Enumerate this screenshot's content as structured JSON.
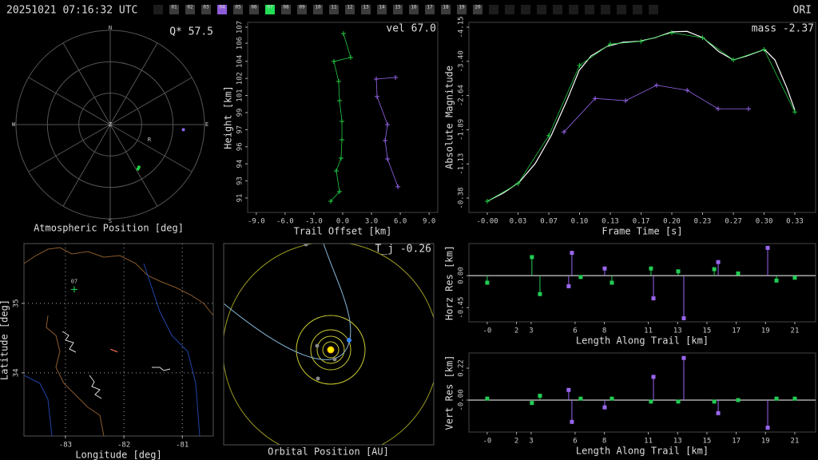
{
  "header": {
    "timestamp": "20251021 07:16:32 UTC",
    "station": "ORI",
    "cameras": [
      {
        "label": "01",
        "color": "#3c3c3c"
      },
      {
        "label": "02",
        "color": "#3c3c3c"
      },
      {
        "label": "03",
        "color": "#3c3c3c"
      },
      {
        "label": "04",
        "color": "#8e5bd8"
      },
      {
        "label": "05",
        "color": "#3c3c3c"
      },
      {
        "label": "06",
        "color": "#3c3c3c"
      },
      {
        "label": "07",
        "color": "#22dd55"
      },
      {
        "label": "08",
        "color": "#3c3c3c"
      },
      {
        "label": "09",
        "color": "#3c3c3c"
      },
      {
        "label": "10",
        "color": "#3c3c3c"
      },
      {
        "label": "11",
        "color": "#3c3c3c"
      },
      {
        "label": "12",
        "color": "#3c3c3c"
      },
      {
        "label": "13",
        "color": "#3c3c3c"
      },
      {
        "label": "14",
        "color": "#3c3c3c"
      },
      {
        "label": "15",
        "color": "#3c3c3c"
      },
      {
        "label": "16",
        "color": "#3c3c3c"
      },
      {
        "label": "17",
        "color": "#3c3c3c"
      },
      {
        "label": "18",
        "color": "#3c3c3c"
      },
      {
        "label": "19",
        "color": "#3c3c3c"
      },
      {
        "label": "20",
        "color": "#3c3c3c"
      }
    ]
  },
  "orbit": {
    "title": "Orbital Position [AU]",
    "annotation": "T_j -0.26"
  },
  "chart_data": [
    {
      "type": "polar",
      "title": "Atmospheric Position [deg]",
      "annotation": "Q* 57.5",
      "compass": [
        "N",
        "E",
        "S",
        "W"
      ],
      "center_label": "Z",
      "rlim": [
        0,
        90
      ],
      "rticks": [
        30,
        60,
        90
      ],
      "series": [
        {
          "color": "#8866ee",
          "az": [
            94
          ],
          "zen": [
            70
          ]
        },
        {
          "color": "#22cc44",
          "az": [
            146,
            148
          ],
          "zen": [
            49,
            50
          ]
        }
      ],
      "markers": [
        {
          "label": "R",
          "az": 111,
          "zen": 40
        }
      ]
    },
    {
      "type": "line",
      "annotation": "vel 67.0",
      "xlabel": "Trail Offset [km]",
      "ylabel": "Height [km]",
      "xlim": [
        -9.9,
        9.9
      ],
      "ylim": [
        89.65,
        107.45
      ],
      "xticks": [
        {
          "value": -9,
          "label": "-9.0"
        },
        {
          "value": -6,
          "label": "-6.0"
        },
        {
          "value": -3,
          "label": "-3.0"
        },
        {
          "value": 0,
          "label": "0.0"
        },
        {
          "value": 3,
          "label": "3.0"
        },
        {
          "value": 6,
          "label": "6.0"
        },
        {
          "value": 9,
          "label": "9.0"
        }
      ],
      "yticks": [
        91,
        {
          "value": 92.6,
          "label": "93"
        },
        {
          "value": 94.2,
          "label": "94"
        },
        {
          "value": 95.8,
          "label": "96"
        },
        {
          "value": 97.4,
          "label": "97"
        },
        99,
        {
          "value": 100.6,
          "label": "101"
        },
        {
          "value": 102.2,
          "label": "102"
        },
        {
          "value": 103.8,
          "label": "104"
        },
        {
          "value": 105.5,
          "label": "106"
        },
        107
      ],
      "series": [
        {
          "color": "#22cc44",
          "line": true,
          "marker": "plus",
          "x": [
            0.08,
            0.83,
            -0.92,
            -0.42,
            -0.33,
            -0.08,
            -0.08,
            -0.17,
            -0.67,
            -0.33,
            -1.25
          ],
          "values": [
            106.4,
            104.16,
            103.79,
            101.92,
            100.12,
            98.18,
            96.46,
            94.74,
            93.54,
            91.6,
            90.7
          ]
        },
        {
          "color": "#9966ee",
          "line": true,
          "marker": "plus",
          "x": [
            5.5,
            3.5,
            3.58,
            4.67,
            4.42,
            4.67,
            5.75
          ],
          "values": [
            102.29,
            102.14,
            100.5,
            97.88,
            96.38,
            94.66,
            92.05
          ]
        }
      ]
    },
    {
      "type": "line",
      "annotation": "mass -2.37",
      "xlabel": "Frame Time [s]",
      "ylabel": "Absolute Magnitude",
      "xlim": [
        -0.0199,
        0.3558
      ],
      "ylim": [
        -0.063,
        -4.259
      ],
      "xticks": [
        {
          "value": 0,
          "label": "-0.00"
        },
        {
          "value": 0.0333,
          "label": "0.03"
        },
        {
          "value": 0.0667,
          "label": "0.07"
        },
        {
          "value": 0.1,
          "label": "0.10"
        },
        {
          "value": 0.1333,
          "label": "0.13"
        },
        {
          "value": 0.1667,
          "label": "0.17"
        },
        {
          "value": 0.2,
          "label": "0.20"
        },
        {
          "value": 0.2333,
          "label": "0.23"
        },
        {
          "value": 0.2667,
          "label": "0.27"
        },
        {
          "value": 0.3,
          "label": "0.30"
        },
        {
          "value": 0.3333,
          "label": "0.33"
        }
      ],
      "yticks": [
        -0.38,
        {
          "value": -1.1346,
          "label": "-1.13"
        },
        {
          "value": -1.8892,
          "label": "-1.89"
        },
        {
          "value": -2.6438,
          "label": "-2.64"
        },
        {
          "value": -3.3984,
          "label": "-3.40"
        },
        {
          "value": -4.153,
          "label": "-4.15"
        }
      ],
      "series": [
        {
          "color": "#ffffff",
          "line": true,
          "marker": null,
          "x": [
            0,
            0.0173,
            0.0346,
            0.0519,
            0.0693,
            0.0866,
            0.0996,
            0.1126,
            0.1299,
            0.1472,
            0.1645,
            0.1818,
            0.2,
            0.2165,
            0.2338,
            0.2511,
            0.2667,
            0.2814,
            0.3004,
            0.3117,
            0.3247,
            0.3333
          ],
          "values": [
            -0.31,
            -0.49,
            -0.73,
            -1.14,
            -1.76,
            -2.55,
            -3.2,
            -3.52,
            -3.73,
            -3.82,
            -3.84,
            -3.92,
            -4.05,
            -4.06,
            -3.92,
            -3.61,
            -3.43,
            -3.52,
            -3.66,
            -3.43,
            -2.81,
            -2.32
          ]
        },
        {
          "color": "#22cc44",
          "line": true,
          "marker": "plus",
          "x": [
            0,
            0.0333,
            0.0667,
            0.1,
            0.1333,
            0.1667,
            0.2,
            0.2333,
            0.2667,
            0.3,
            0.3333
          ],
          "values": [
            -0.31,
            -0.7,
            -1.76,
            -3.31,
            -3.78,
            -3.84,
            -4.03,
            -3.92,
            -3.43,
            -3.66,
            -2.28
          ]
        },
        {
          "color": "#9966ee",
          "line": true,
          "marker": "plus",
          "x": [
            0.0831,
            0.1169,
            0.1498,
            0.1835,
            0.2165,
            0.2502,
            0.2831
          ],
          "values": [
            -1.84,
            -2.58,
            -2.53,
            -2.87,
            -2.76,
            -2.35,
            -2.35
          ]
        }
      ]
    },
    {
      "type": "map",
      "xlabel": "Longitude [deg]",
      "ylabel": "Latitude [deg]",
      "grid": true,
      "xlim": [
        -83.71,
        -80.47
      ],
      "ylim": [
        33.09,
        35.86
      ],
      "xticks": [
        -83,
        -82,
        -81
      ],
      "yticks": [
        34,
        35
      ],
      "stations": [
        {
          "label": "07",
          "lon": -82.85,
          "lat": 35.2,
          "color": "#22dd55"
        }
      ],
      "series": [
        {
          "color": "#ff7755",
          "line": true,
          "marker": null,
          "x": [
            -82.23,
            -82.11
          ],
          "values": [
            34.34,
            34.3
          ]
        }
      ]
    },
    {
      "type": "stem",
      "xlabel": "Length Along Trail [km]",
      "ylabel": "Horz Res [km]",
      "xlim": [
        -1.25,
        22.42
      ],
      "ylim": [
        -0.65,
        0.45
      ],
      "xticks": [
        {
          "value": 0,
          "label": "-0"
        },
        2,
        3,
        6,
        8,
        11,
        13,
        15,
        17,
        19,
        21
      ],
      "yticks": [
        -0.45,
        {
          "value": 0,
          "label": "0.00"
        }
      ],
      "series": [
        {
          "color": "#22cc55",
          "marker": "square",
          "x": [
            0,
            3.05,
            3.6,
            6.38,
            8.51,
            11.18,
            13.04,
            15.5,
            17.13,
            19.75,
            21.0
          ],
          "values": [
            -0.1,
            0.26,
            -0.26,
            -0.02,
            -0.1,
            0.1,
            0.06,
            0.09,
            0.03,
            -0.07,
            -0.03
          ]
        },
        {
          "color": "#9966ee",
          "marker": "square",
          "x": [
            5.56,
            5.78,
            8.02,
            11.35,
            13.42,
            15.77,
            19.15
          ],
          "values": [
            -0.15,
            0.32,
            0.1,
            -0.32,
            -0.6,
            0.19,
            0.39
          ]
        }
      ]
    },
    {
      "type": "stem",
      "xlabel": "Length Along Trail [km]",
      "ylabel": "Vert Res [km]",
      "xlim": [
        -1.25,
        22.42
      ],
      "ylim": [
        -0.22,
        0.3245
      ],
      "xticks": [
        {
          "value": 0,
          "label": "-0"
        },
        2,
        3,
        6,
        8,
        11,
        13,
        15,
        17,
        19,
        21
      ],
      "yticks": [
        {
          "value": 0,
          "label": "-0.00"
        },
        0.22
      ],
      "series": [
        {
          "color": "#22cc55",
          "marker": "square",
          "x": [
            0,
            3.05,
            3.6,
            6.38,
            8.51,
            11.18,
            13.04,
            15.5,
            17.13,
            19.75,
            21.0
          ],
          "values": [
            0.01,
            -0.02,
            0.03,
            0.01,
            0.01,
            -0.01,
            -0.01,
            -0.01,
            0,
            0.01,
            0.01
          ]
        },
        {
          "color": "#9966ee",
          "marker": "square",
          "x": [
            5.56,
            5.78,
            8.02,
            11.35,
            13.42,
            15.77,
            19.15
          ],
          "values": [
            0.07,
            -0.15,
            -0.05,
            0.16,
            0.29,
            -0.09,
            -0.19
          ]
        }
      ]
    }
  ]
}
